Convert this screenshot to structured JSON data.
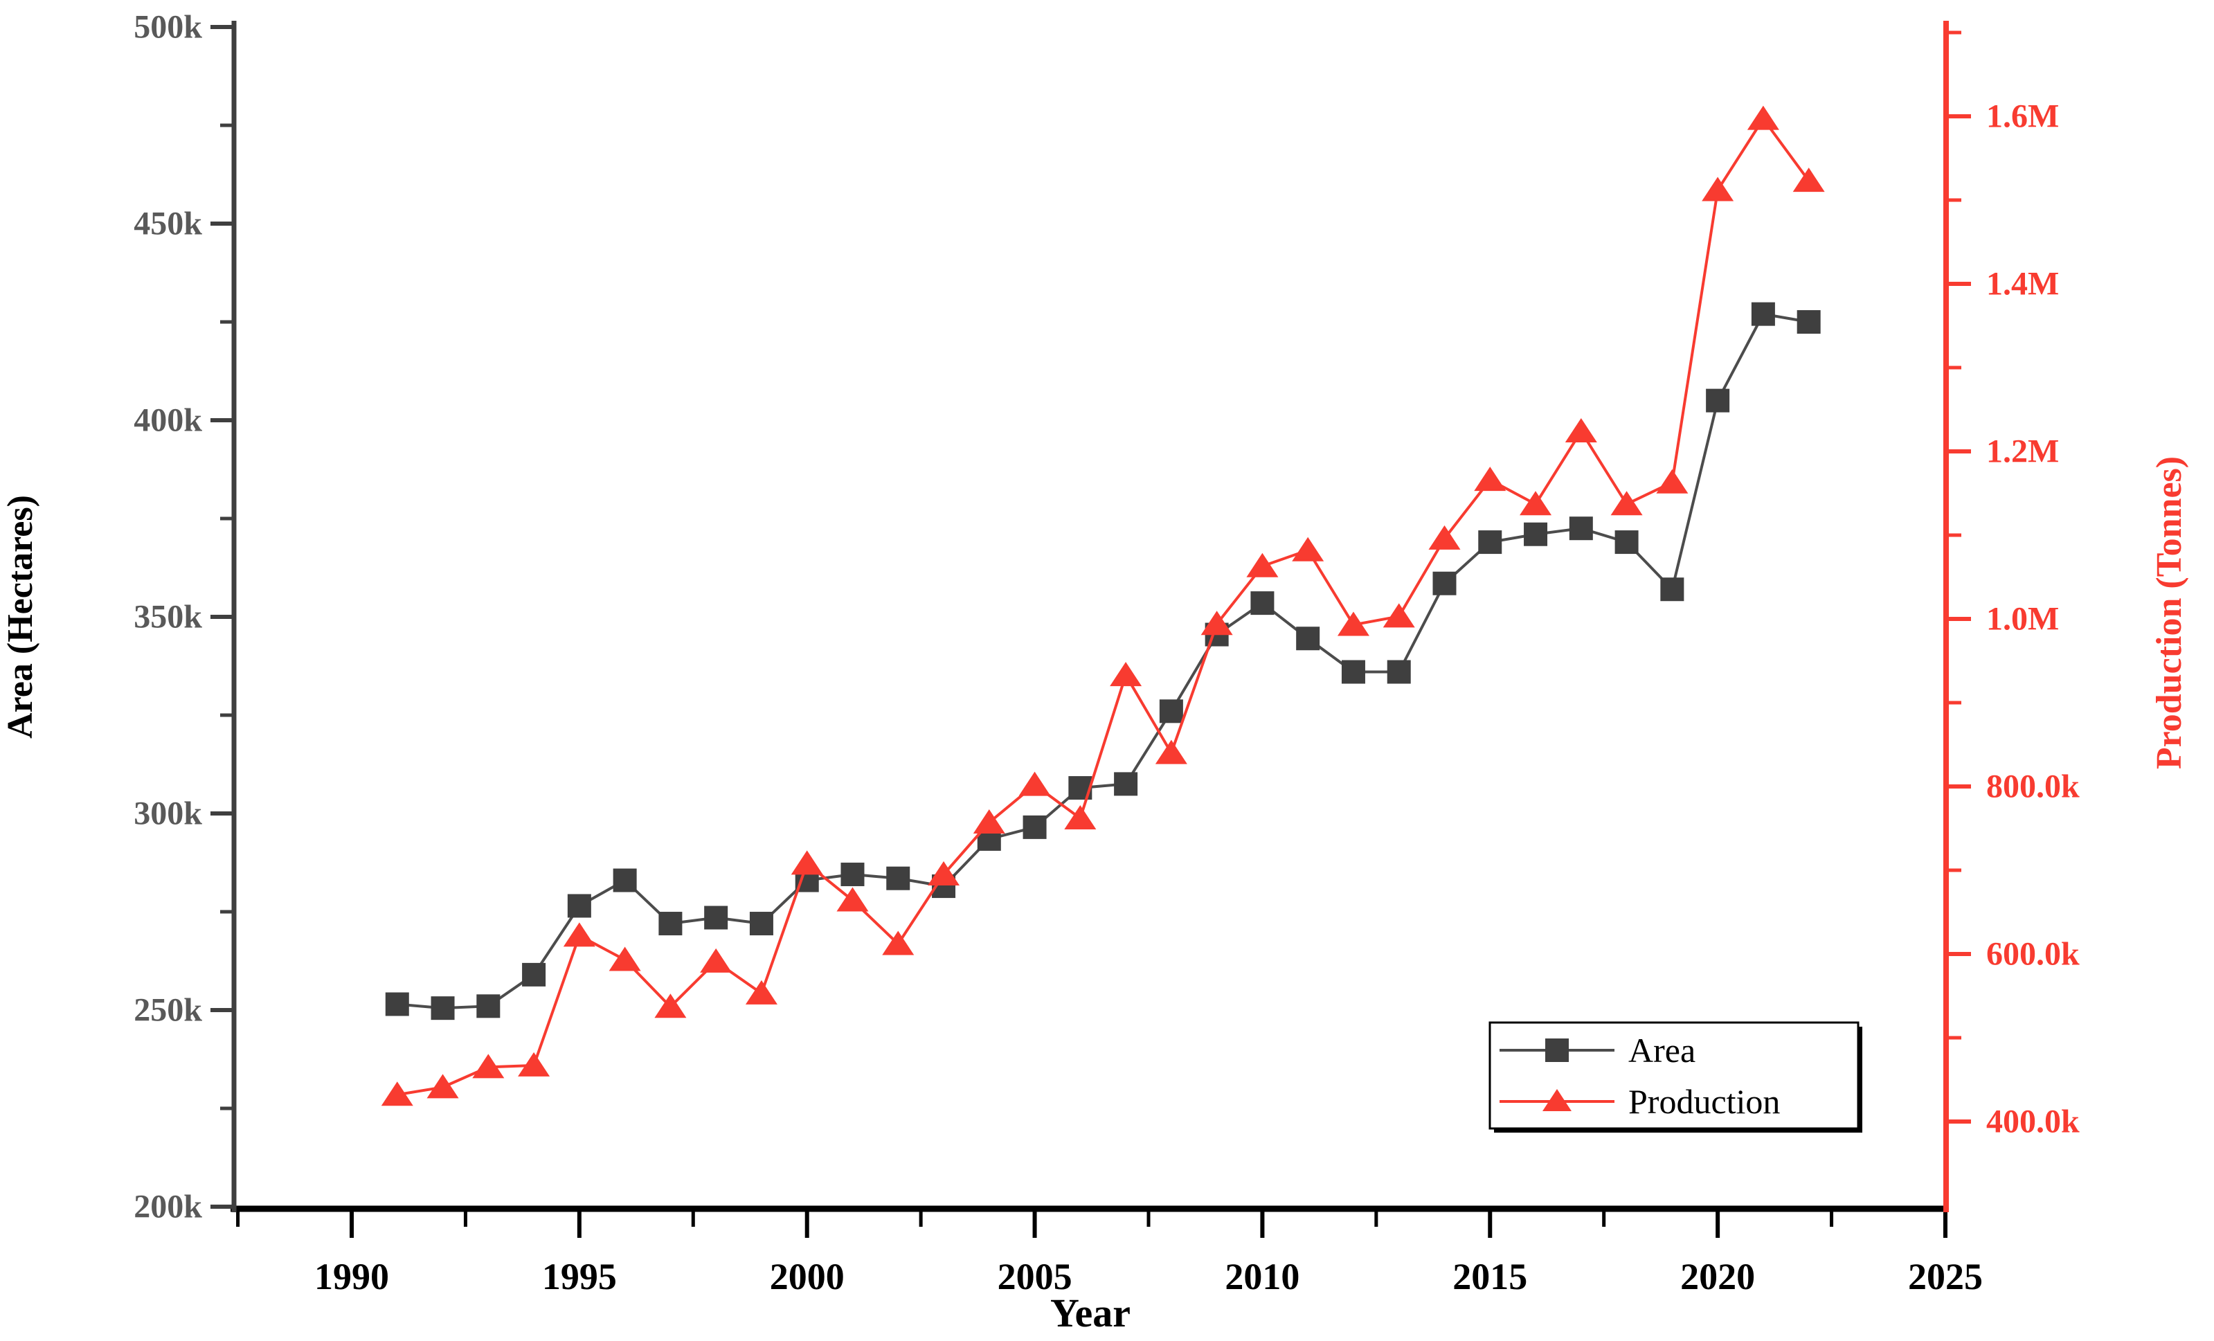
{
  "chart_data": {
    "type": "line",
    "title": "",
    "xlabel": "Year",
    "grid": false,
    "legend_position": "lower-right-inside",
    "x": [
      1991,
      1992,
      1993,
      1994,
      1995,
      1996,
      1997,
      1998,
      1999,
      2000,
      2001,
      2002,
      2003,
      2004,
      2005,
      2006,
      2007,
      2008,
      2009,
      2010,
      2011,
      2012,
      2013,
      2014,
      2015,
      2016,
      2017,
      2018,
      2019,
      2020,
      2021,
      2022
    ],
    "series": [
      {
        "name": "Area",
        "axis": "left",
        "marker": "square",
        "color": "#3F3F3F",
        "line_color": "#4C4C4C",
        "values": [
          251500,
          250500,
          251000,
          259000,
          276500,
          283000,
          272000,
          273500,
          272000,
          283000,
          284500,
          283500,
          281500,
          293500,
          296500,
          306500,
          307500,
          326000,
          345500,
          353500,
          344500,
          336000,
          336000,
          358500,
          369000,
          371000,
          372500,
          369000,
          357000,
          405000,
          427000,
          425000
        ]
      },
      {
        "name": "Production",
        "axis": "right",
        "marker": "triangle-up",
        "color": "#F83B30",
        "line_color": "#F83B30",
        "values": [
          432000,
          441000,
          465000,
          467000,
          622000,
          593000,
          537000,
          591000,
          553000,
          708000,
          664000,
          612000,
          695000,
          757000,
          802000,
          762000,
          933000,
          840000,
          994000,
          1063000,
          1082000,
          993000,
          1003000,
          1096000,
          1166000,
          1137000,
          1224000,
          1137000,
          1163000,
          1512000,
          1597000,
          1523000
        ]
      }
    ],
    "x_axis": {
      "label": "Year",
      "major_ticks": [
        1990,
        1995,
        2000,
        2005,
        2010,
        2015,
        2020,
        2025
      ],
      "major_tick_labels": [
        "1990",
        "1995",
        "2000",
        "2005",
        "2010",
        "2015",
        "2020",
        "2025"
      ],
      "minor_ticks": [
        1987.5,
        1992.5,
        1997.5,
        2002.5,
        2007.5,
        2012.5,
        2017.5,
        2022.5
      ],
      "range": [
        1987.4,
        2025
      ],
      "color": "#000000"
    },
    "left_axis": {
      "label": "Area (Hectares)",
      "major_ticks": [
        500000,
        450000,
        400000,
        350000,
        300000,
        250000,
        200000
      ],
      "major_tick_labels": [
        "500k",
        "450k",
        "400k",
        "350k",
        "300k",
        "250k",
        "200k"
      ],
      "minor_ticks": [
        475000,
        425000,
        375000,
        325000,
        275000,
        225000
      ],
      "range": [
        200000,
        500000
      ],
      "spine_color": "#3F3F3F",
      "text_color": "#595959"
    },
    "right_axis": {
      "label": "Production (Tonnes)",
      "major_ticks": [
        1600000,
        1400000,
        1200000,
        1000000,
        800000,
        600000,
        400000
      ],
      "major_tick_labels": [
        "1.6M",
        "1.4M",
        "1.2M",
        "1.0M",
        "800.0k",
        "600.0k",
        "400.0k"
      ],
      "minor_ticks": [
        1700000,
        1500000,
        1300000,
        1100000,
        900000,
        700000,
        500000
      ],
      "range": [
        296000,
        1714000
      ],
      "spine_color": "#F83B30",
      "text_color": "#F83B30"
    },
    "legend": {
      "entries": [
        {
          "label": "Area",
          "marker": "square",
          "color": "#3F3F3F"
        },
        {
          "label": "Production",
          "marker": "triangle-up",
          "color": "#F83B30"
        }
      ]
    }
  }
}
